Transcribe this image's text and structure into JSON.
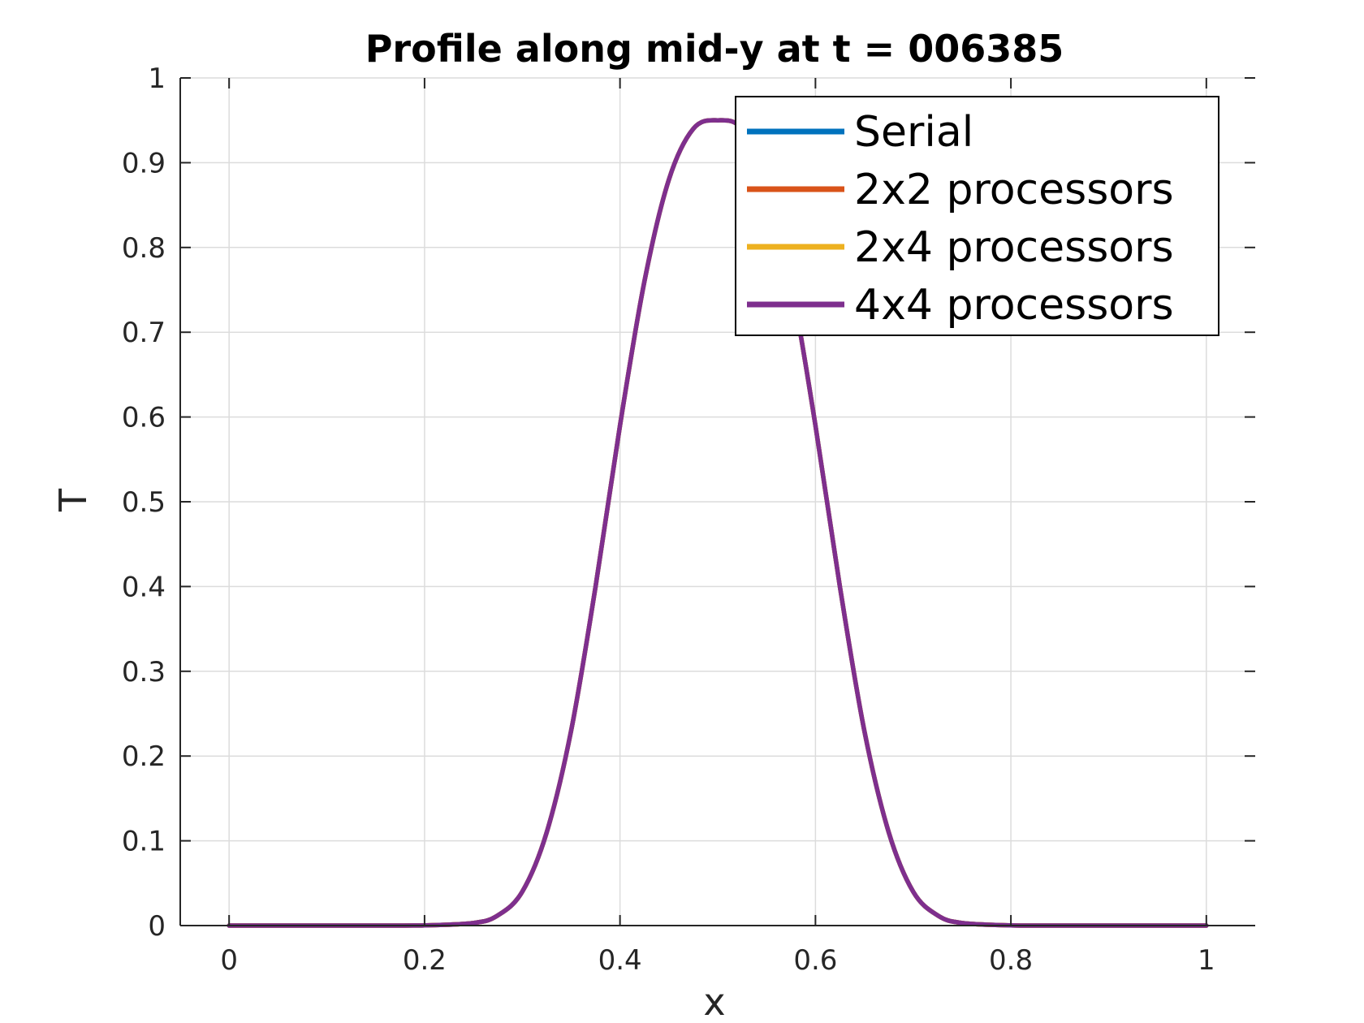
{
  "chart_data": {
    "type": "line",
    "title": "Profile along mid-y at t = 006385",
    "xlabel": "x",
    "ylabel": "T",
    "xlim": [
      -0.05,
      1.05
    ],
    "ylim": [
      0,
      1
    ],
    "xticks": [
      0,
      0.2,
      0.4,
      0.6,
      0.8,
      1
    ],
    "xtick_labels": [
      "0",
      "0.2",
      "0.4",
      "0.6",
      "0.8",
      "1"
    ],
    "yticks": [
      0,
      0.1,
      0.2,
      0.3,
      0.4,
      0.5,
      0.6,
      0.7,
      0.8,
      0.9,
      1
    ],
    "ytick_labels": [
      "0",
      "0.1",
      "0.2",
      "0.3",
      "0.4",
      "0.5",
      "0.6",
      "0.7",
      "0.8",
      "0.9",
      "1"
    ],
    "grid": true,
    "legend_position": "top-right",
    "x": [
      0,
      0.05,
      0.1,
      0.15,
      0.2,
      0.25,
      0.275,
      0.3,
      0.325,
      0.35,
      0.375,
      0.4,
      0.425,
      0.45,
      0.475,
      0.5,
      0.525,
      0.55,
      0.575,
      0.6,
      0.625,
      0.65,
      0.675,
      0.7,
      0.725,
      0.75,
      0.8,
      0.85,
      0.9,
      0.95,
      1
    ],
    "series": [
      {
        "name": "Serial",
        "color": "#0072BD",
        "values": [
          0,
          0,
          0,
          0,
          0.0003,
          0.003,
          0.012,
          0.04,
          0.11,
          0.23,
          0.4,
          0.59,
          0.76,
          0.88,
          0.94,
          0.95,
          0.94,
          0.88,
          0.76,
          0.59,
          0.4,
          0.23,
          0.11,
          0.04,
          0.012,
          0.003,
          0.0003,
          0,
          0,
          0,
          0
        ]
      },
      {
        "name": "2x2 processors",
        "color": "#D95319",
        "values": [
          0,
          0,
          0,
          0,
          0.0003,
          0.003,
          0.012,
          0.04,
          0.11,
          0.23,
          0.4,
          0.59,
          0.76,
          0.88,
          0.94,
          0.95,
          0.94,
          0.88,
          0.76,
          0.59,
          0.4,
          0.23,
          0.11,
          0.04,
          0.012,
          0.003,
          0.0003,
          0,
          0,
          0,
          0
        ]
      },
      {
        "name": "2x4 processors",
        "color": "#EDB120",
        "values": [
          0,
          0,
          0,
          0,
          0.0003,
          0.003,
          0.012,
          0.04,
          0.11,
          0.23,
          0.4,
          0.59,
          0.76,
          0.88,
          0.94,
          0.95,
          0.94,
          0.88,
          0.76,
          0.59,
          0.4,
          0.23,
          0.11,
          0.04,
          0.012,
          0.003,
          0.0003,
          0,
          0,
          0,
          0
        ]
      },
      {
        "name": "4x4 processors",
        "color": "#7E2F8E",
        "values": [
          0,
          0,
          0,
          0,
          0.0003,
          0.003,
          0.012,
          0.04,
          0.11,
          0.23,
          0.4,
          0.59,
          0.76,
          0.88,
          0.94,
          0.95,
          0.94,
          0.88,
          0.76,
          0.59,
          0.4,
          0.23,
          0.11,
          0.04,
          0.012,
          0.003,
          0.0003,
          0,
          0,
          0,
          0
        ]
      }
    ]
  },
  "colors": {
    "grid": "#dcdcdc",
    "axis": "#262626"
  }
}
